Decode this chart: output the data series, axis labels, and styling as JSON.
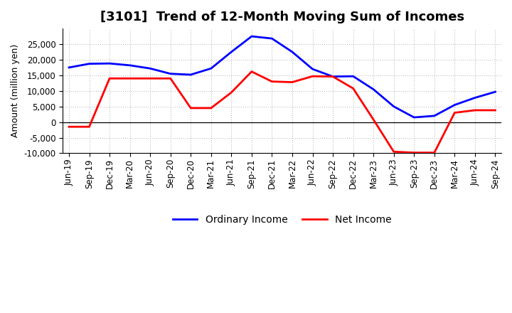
{
  "title": "[3101]  Trend of 12-Month Moving Sum of Incomes",
  "ylabel": "Amount (million yen)",
  "x_labels": [
    "Jun-19",
    "Sep-19",
    "Dec-19",
    "Mar-20",
    "Jun-20",
    "Sep-20",
    "Dec-20",
    "Mar-21",
    "Jun-21",
    "Sep-21",
    "Dec-21",
    "Mar-22",
    "Jun-22",
    "Sep-22",
    "Dec-22",
    "Mar-23",
    "Jun-23",
    "Sep-23",
    "Dec-23",
    "Mar-24",
    "Jun-24",
    "Sep-24"
  ],
  "ordinary_income": [
    17500,
    18700,
    18800,
    18200,
    17200,
    15500,
    15200,
    17200,
    22500,
    27500,
    26800,
    22500,
    17000,
    14600,
    14700,
    10500,
    5000,
    1500,
    2000,
    5500,
    7800,
    9700
  ],
  "net_income": [
    -1500,
    -1500,
    14000,
    14000,
    14000,
    14000,
    4500,
    4500,
    9500,
    16200,
    13000,
    12800,
    14700,
    14600,
    10800,
    800,
    -9500,
    -9800,
    -9800,
    3000,
    3800,
    3800
  ],
  "ordinary_color": "#0000ff",
  "net_color": "#ff0000",
  "ylim": [
    -10000,
    30000
  ],
  "yticks": [
    -10000,
    -5000,
    0,
    5000,
    10000,
    15000,
    20000,
    25000
  ],
  "background_color": "#ffffff",
  "grid_color": "#b0b0b0",
  "title_fontsize": 13,
  "axis_fontsize": 9,
  "tick_fontsize": 8.5,
  "legend_fontsize": 10
}
